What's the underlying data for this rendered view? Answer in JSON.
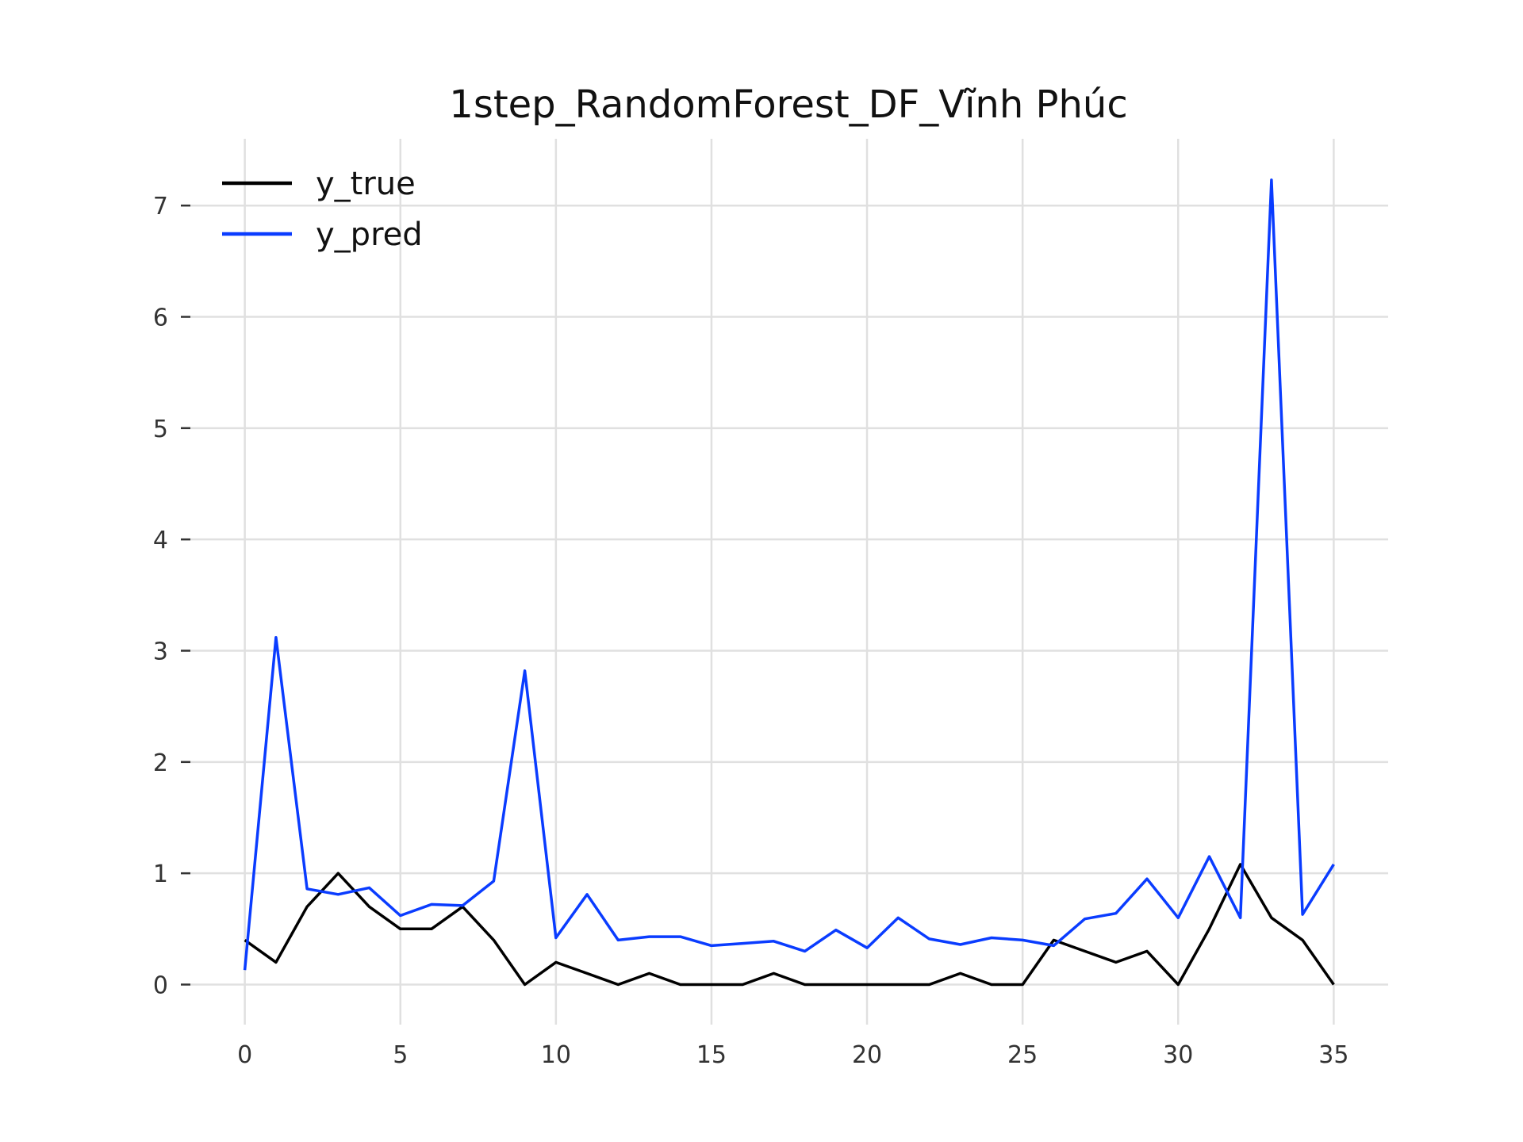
{
  "chart_data": {
    "type": "line",
    "title": "1step_RandomForest_DF_Vĩnh Phúc",
    "xlabel": "",
    "ylabel": "",
    "xlim": [
      -1.75,
      36.75
    ],
    "ylim": [
      -0.36,
      7.6
    ],
    "x_ticks": [
      0,
      5,
      10,
      15,
      20,
      25,
      30,
      35
    ],
    "y_ticks": [
      0,
      1,
      2,
      3,
      4,
      5,
      6,
      7
    ],
    "grid": true,
    "legend_position": "upper-left",
    "x": [
      0,
      1,
      2,
      3,
      4,
      5,
      6,
      7,
      8,
      9,
      10,
      11,
      12,
      13,
      14,
      15,
      16,
      17,
      18,
      19,
      20,
      21,
      22,
      23,
      24,
      25,
      26,
      27,
      28,
      29,
      30,
      31,
      32,
      33,
      34,
      35
    ],
    "series": [
      {
        "name": "y_true",
        "color": "#000000",
        "values": [
          0.4,
          0.2,
          0.7,
          1.0,
          0.7,
          0.5,
          0.5,
          0.7,
          0.4,
          0.0,
          0.2,
          0.1,
          0.0,
          0.1,
          0.0,
          0.0,
          0.0,
          0.1,
          0.0,
          0.0,
          0.0,
          0.0,
          0.0,
          0.1,
          0.0,
          0.0,
          0.4,
          0.3,
          0.2,
          0.3,
          0.0,
          0.5,
          1.08,
          0.6,
          0.4,
          0.0
        ]
      },
      {
        "name": "y_pred",
        "color": "#0a3cff",
        "values": [
          0.13,
          3.12,
          0.86,
          0.81,
          0.87,
          0.62,
          0.72,
          0.71,
          0.93,
          2.82,
          0.42,
          0.81,
          0.4,
          0.43,
          0.43,
          0.35,
          0.37,
          0.39,
          0.3,
          0.49,
          0.33,
          0.6,
          0.41,
          0.36,
          0.42,
          0.4,
          0.35,
          0.59,
          0.64,
          0.95,
          0.6,
          1.15,
          0.6,
          7.23,
          0.63,
          1.08
        ]
      }
    ]
  }
}
